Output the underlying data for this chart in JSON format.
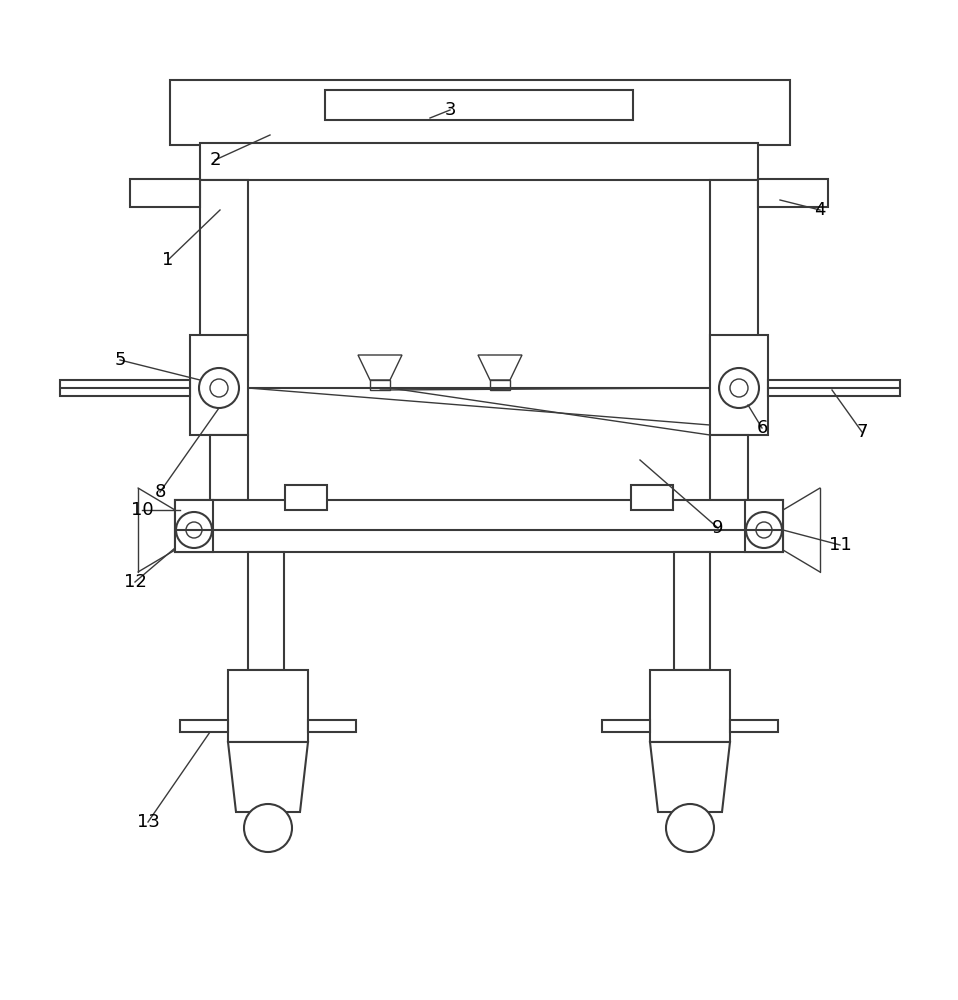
{
  "background_color": "#ffffff",
  "line_color": "#3a3a3a",
  "lw": 1.5,
  "lw_thin": 1.0,
  "fig_width": 9.58,
  "fig_height": 10.0
}
